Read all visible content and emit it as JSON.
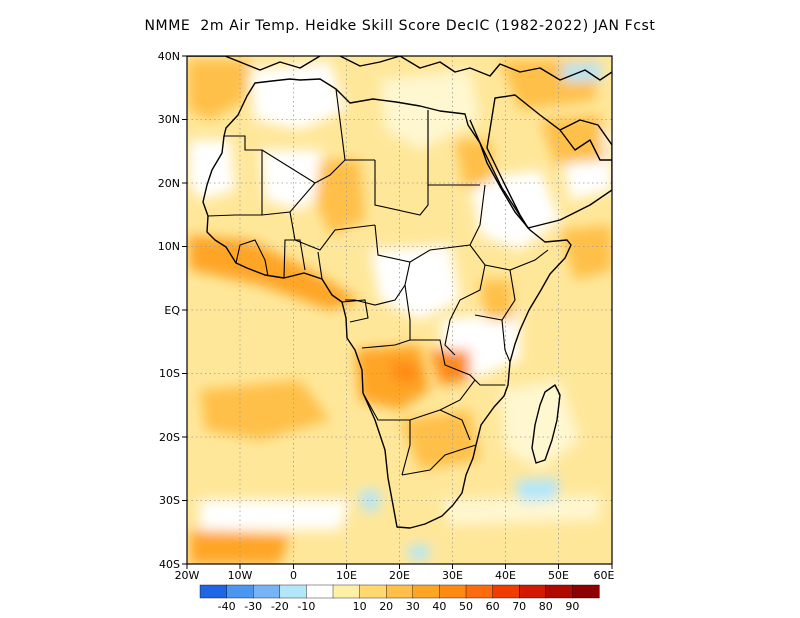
{
  "title": "NMME  2m Air Temp. Heidke Skill Score DecIC (1982-2022) JAN Fcst",
  "lat_labels": [
    "40N",
    "30N",
    "20N",
    "10N",
    "EQ",
    "10S",
    "20S",
    "30S",
    "40S"
  ],
  "lon_labels": [
    "20W",
    "10W",
    "0",
    "10E",
    "20E",
    "30E",
    "40E",
    "50E",
    "60E"
  ],
  "colorbar": {
    "colors": [
      "#1f66e6",
      "#4a96f0",
      "#78b4f5",
      "#b4e6fa",
      "#ffffff",
      "#fff0a6",
      "#ffd970",
      "#ffc049",
      "#ffa526",
      "#ff8a12",
      "#ff6a0a",
      "#f03c00",
      "#d21a00",
      "#b00a00",
      "#900000"
    ],
    "labels": [
      "-40",
      "-30",
      "-20",
      "-10",
      "10",
      "20",
      "30",
      "40",
      "50",
      "60",
      "70",
      "80",
      "90"
    ]
  },
  "map": {
    "region": "Africa",
    "lat_range": [
      -40,
      40
    ],
    "lon_range": [
      -20,
      60
    ]
  }
}
